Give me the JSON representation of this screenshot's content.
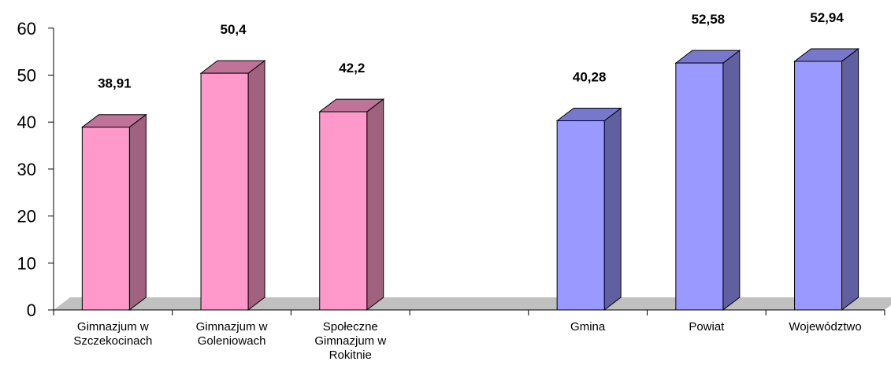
{
  "chart_data": {
    "type": "bar",
    "categories": [
      "Gimnazjum w Szczekocinach",
      "Gimnazjum w Goleniowach",
      "Społeczne Gimnazjum w Rokitnie",
      "",
      "Gmina",
      "Powiat",
      "Województwo"
    ],
    "category_lines": [
      [
        "Gimnazjum w",
        "Szczekocinach"
      ],
      [
        "Gimnazjum w",
        "Goleniowach"
      ],
      [
        "Społeczne",
        "Gimnazjum w",
        "Rokitnie"
      ],
      [],
      [
        "Gmina"
      ],
      [
        "Powiat"
      ],
      [
        "Województwo"
      ]
    ],
    "values": [
      38.91,
      50.4,
      42.2,
      null,
      40.28,
      52.58,
      52.94
    ],
    "value_labels": [
      "38,91",
      "50,4",
      "42,2",
      "",
      "40,28",
      "52,58",
      "52,94"
    ],
    "y_ticks": [
      0,
      10,
      20,
      30,
      40,
      50,
      60
    ],
    "ylim": [
      0,
      60
    ],
    "title": "",
    "xlabel": "",
    "ylabel": "",
    "grid": false,
    "legend": "none",
    "colors": {
      "school_front": "#ff99cc",
      "school_side": "#a0627f",
      "school_top": "#bf7399",
      "region_front": "#9999ff",
      "region_side": "#6060a0",
      "region_top": "#7777cc",
      "floor": "#c0c0c0"
    }
  }
}
